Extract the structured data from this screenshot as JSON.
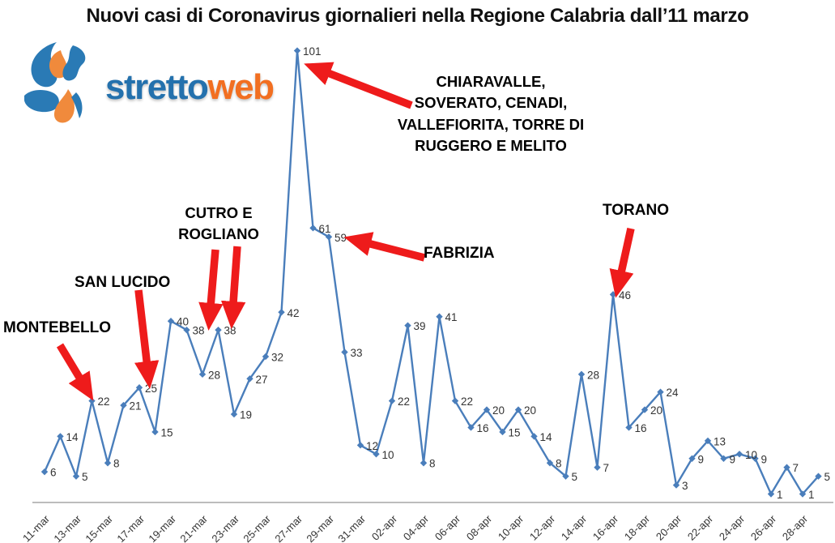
{
  "title": "Nuovi casi di Coronavirus giornalieri nella Regione Calabria dall’11 marzo",
  "logo": {
    "text_primary": "stretto",
    "text_secondary": "web",
    "color_primary": "#2471ad",
    "color_secondary": "#f26f21"
  },
  "chart_data": {
    "type": "line",
    "title": "Nuovi casi di Coronavirus giornalieri nella Regione Calabria dall’11 marzo",
    "series_color": "#4a7ebb",
    "values": [
      6,
      14,
      5,
      22,
      8,
      21,
      25,
      15,
      40,
      38,
      28,
      38,
      19,
      27,
      32,
      42,
      101,
      61,
      59,
      33,
      12,
      10,
      22,
      39,
      8,
      41,
      22,
      16,
      20,
      15,
      20,
      14,
      8,
      5,
      28,
      7,
      46,
      16,
      20,
      24,
      3,
      9,
      13,
      9,
      10,
      9,
      1,
      7,
      1,
      5
    ],
    "x_tick_labels": [
      "11-mar",
      "13-mar",
      "15-mar",
      "17-mar",
      "19-mar",
      "21-mar",
      "23-mar",
      "25-mar",
      "27-mar",
      "29-mar",
      "31-mar",
      "02-apr",
      "04-apr",
      "06-apr",
      "08-apr",
      "10-apr",
      "12-apr",
      "14-apr",
      "16-apr",
      "18-apr",
      "20-apr",
      "22-apr",
      "24-apr",
      "26-apr",
      "28-apr"
    ],
    "tick_every": 2,
    "ylim": [
      0,
      105
    ],
    "grid": false,
    "marker": "diamond",
    "data_labels": true,
    "legend": "none"
  },
  "annotations": [
    {
      "id": "montebello",
      "lines": [
        "MONTEBELLO"
      ],
      "points_to_value": 22
    },
    {
      "id": "san-lucido",
      "lines": [
        "SAN LUCIDO"
      ],
      "points_to_value": 25
    },
    {
      "id": "cutro-rogliano",
      "lines": [
        "CUTRO E",
        "ROGLIANO"
      ],
      "points_to_value": 38
    },
    {
      "id": "chiaravalle",
      "lines": [
        "CHIARAVALLE,",
        "SOVERATO, CENADI,",
        "VALLEFIORITA, TORRE DI",
        "RUGGERO E MELITO"
      ],
      "points_to_value": 101
    },
    {
      "id": "fabrizia",
      "lines": [
        "FABRIZIA"
      ],
      "points_to_value": 59
    },
    {
      "id": "torano",
      "lines": [
        "TORANO"
      ],
      "points_to_value": 46
    }
  ],
  "arrow_color": "#ee1b1b"
}
